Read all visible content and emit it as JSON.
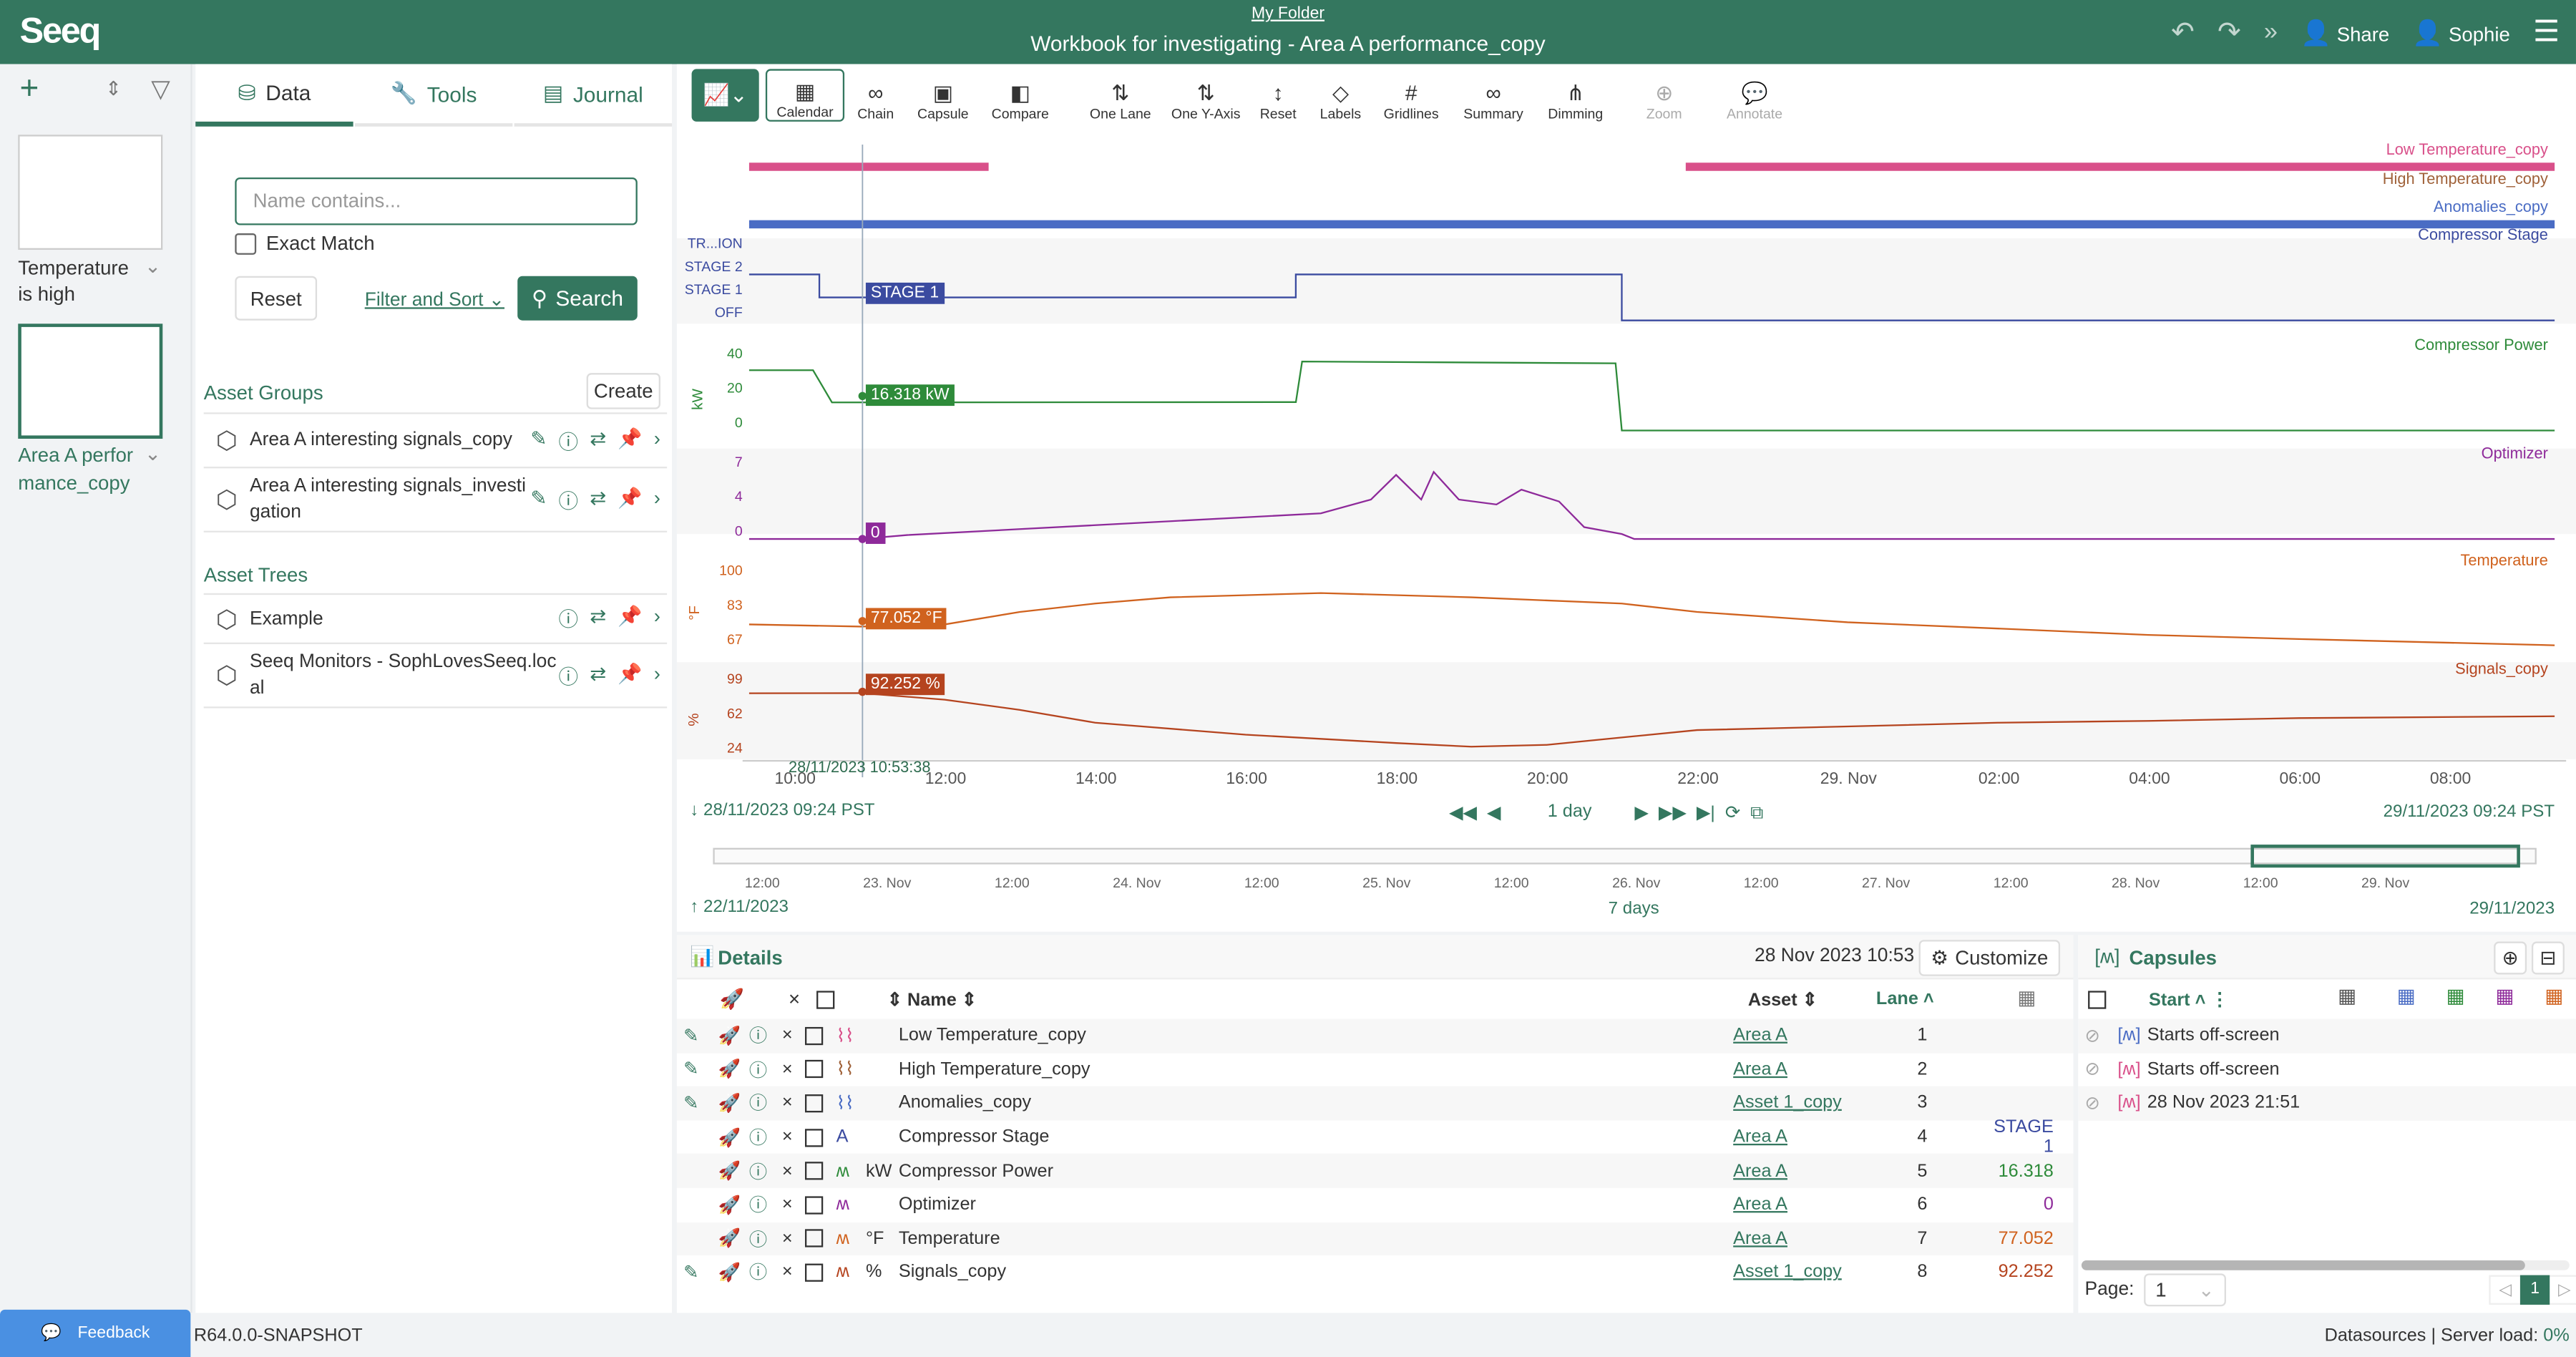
{
  "header": {
    "logo": "Seeq",
    "folder": "My Folder",
    "title": "Workbook for investigating - Area A performance_copy",
    "share": "Share",
    "user": "Sophie"
  },
  "worksheets": [
    {
      "name": "Temperature is high"
    },
    {
      "name": "Area A performance_copy",
      "active": true
    }
  ],
  "panel": {
    "tabs": [
      {
        "label": "Data",
        "icon": "database-icon",
        "active": true
      },
      {
        "label": "Tools",
        "icon": "wrench-icon"
      },
      {
        "label": "Journal",
        "icon": "journal-icon"
      }
    ],
    "search_placeholder": "Name contains...",
    "exact_match": "Exact Match",
    "reset": "Reset",
    "filter_sort": "Filter and Sort",
    "search": "Search",
    "asset_groups_title": "Asset Groups",
    "create": "Create",
    "asset_groups": [
      "Area A interesting signals_copy",
      "Area A interesting signals_investigation"
    ],
    "asset_trees_title": "Asset Trees",
    "asset_trees": [
      "Example",
      "Seeq Monitors - SophLovesSeeq.local"
    ]
  },
  "toolbar": {
    "items": [
      "Calendar",
      "Chain",
      "Capsule",
      "Compare",
      "One Lane",
      "One Y-Axis",
      "Reset",
      "Labels",
      "Gridlines",
      "Summary",
      "Dimming",
      "Zoom",
      "Annotate"
    ]
  },
  "trend": {
    "lanes": {
      "low_temp": "Low Temperature_copy",
      "high_temp": "High Temperature_copy",
      "anomalies": "Anomalies_copy",
      "stage": "Compressor Stage",
      "power": "Compressor Power",
      "optimizer": "Optimizer",
      "temperature": "Temperature",
      "signals": "Signals_copy"
    },
    "stage_levels": [
      "TR...ION",
      "STAGE 2",
      "STAGE 1",
      "OFF"
    ],
    "power_ticks": [
      "40",
      "20",
      "0"
    ],
    "power_unit": "kW",
    "opt_ticks": [
      "7",
      "4",
      "0"
    ],
    "temp_ticks": [
      "100",
      "83",
      "67"
    ],
    "temp_unit": "°F",
    "sig_ticks": [
      "99",
      "62",
      "24"
    ],
    "sig_unit": "%",
    "cursor_time": "28/11/2023 10:53:38",
    "cursor_labels": {
      "stage": "STAGE 1",
      "power": "16.318 kW",
      "optimizer": "0",
      "temperature": "77.052 °F",
      "signals": "92.252 %"
    },
    "x_ticks": [
      "10:00",
      "12:00",
      "14:00",
      "16:00",
      "18:00",
      "20:00",
      "22:00",
      "29. Nov",
      "02:00",
      "04:00",
      "06:00",
      "08:00"
    ],
    "start": "28/11/2023 09:24  PST",
    "end": "29/11/2023 09:24  PST",
    "duration": "1 day",
    "overview_ticks": [
      "12:00",
      "23. Nov",
      "12:00",
      "24. Nov",
      "12:00",
      "25. Nov",
      "12:00",
      "26. Nov",
      "12:00",
      "27. Nov",
      "12:00",
      "28. Nov",
      "12:00",
      "29. Nov"
    ],
    "overview_start": "22/11/2023",
    "overview_end": "29/11/2023",
    "overview_duration": "7 days",
    "colors": {
      "low_temp": "#d9508a",
      "high_temp": "#a0623a",
      "anomalies": "#4a6cc4",
      "stage": "#3b4ba0",
      "power": "#2e8b3a",
      "optimizer": "#8e2a9a",
      "temperature": "#d0621e",
      "signals": "#b5441f"
    }
  },
  "chart_data": {
    "type": "line",
    "x_range": [
      "2023-11-28T09:24",
      "2023-11-29T09:24"
    ],
    "series": [
      {
        "name": "Compressor Power",
        "unit": "kW",
        "ylim": [
          0,
          40
        ],
        "points": [
          [
            "2023-11-28T09:24",
            35
          ],
          [
            "2023-11-28T10:15",
            35
          ],
          [
            "2023-11-28T10:30",
            16.3
          ],
          [
            "2023-11-28T16:40",
            16.5
          ],
          [
            "2023-11-28T16:45",
            40
          ],
          [
            "2023-11-28T20:55",
            39
          ],
          [
            "2023-11-28T21:00",
            0
          ],
          [
            "2023-11-29T09:24",
            0
          ]
        ]
      },
      {
        "name": "Optimizer",
        "ylim": [
          0,
          7
        ],
        "points": [
          [
            "2023-11-28T09:24",
            0
          ],
          [
            "2023-11-28T10:53",
            0
          ],
          [
            "2023-11-28T11:30",
            0.4
          ],
          [
            "2023-11-28T13:00",
            1
          ],
          [
            "2023-11-28T14:00",
            1.4
          ],
          [
            "2023-11-28T15:00",
            1.8
          ],
          [
            "2023-11-28T16:00",
            2.2
          ],
          [
            "2023-11-28T17:00",
            2.6
          ],
          [
            "2023-11-28T17:40",
            4
          ],
          [
            "2023-11-28T18:00",
            6.5
          ],
          [
            "2023-11-28T18:20",
            4
          ],
          [
            "2023-11-28T18:30",
            6.8
          ],
          [
            "2023-11-28T18:50",
            4
          ],
          [
            "2023-11-28T19:20",
            3.5
          ],
          [
            "2023-11-28T19:40",
            5
          ],
          [
            "2023-11-28T20:10",
            3.8
          ],
          [
            "2023-11-28T20:30",
            1.2
          ],
          [
            "2023-11-28T21:00",
            0.5
          ],
          [
            "2023-11-28T21:10",
            0
          ],
          [
            "2023-11-29T09:24",
            0
          ]
        ]
      },
      {
        "name": "Temperature",
        "unit": "°F",
        "ylim": [
          67,
          100
        ],
        "points": [
          [
            "2023-11-28T09:24",
            78
          ],
          [
            "2023-11-28T10:53",
            77
          ],
          [
            "2023-11-28T12:00",
            78
          ],
          [
            "2023-11-28T13:00",
            84
          ],
          [
            "2023-11-28T14:00",
            88
          ],
          [
            "2023-11-28T15:00",
            91
          ],
          [
            "2023-11-28T17:00",
            93
          ],
          [
            "2023-11-28T19:00",
            91
          ],
          [
            "2023-11-28T21:00",
            88
          ],
          [
            "2023-11-28T22:00",
            84
          ],
          [
            "2023-11-29T00:00",
            79
          ],
          [
            "2023-11-29T02:00",
            76
          ],
          [
            "2023-11-29T04:00",
            73
          ],
          [
            "2023-11-29T06:00",
            71
          ],
          [
            "2023-11-29T09:24",
            68
          ]
        ]
      },
      {
        "name": "Signals_copy",
        "unit": "%",
        "ylim": [
          24,
          99
        ],
        "points": [
          [
            "2023-11-28T09:24",
            92
          ],
          [
            "2023-11-28T10:53",
            92.3
          ],
          [
            "2023-11-28T12:00",
            85
          ],
          [
            "2023-11-28T13:00",
            74
          ],
          [
            "2023-11-28T14:00",
            60
          ],
          [
            "2023-11-28T16:00",
            47
          ],
          [
            "2023-11-28T18:00",
            38
          ],
          [
            "2023-11-28T19:00",
            34
          ],
          [
            "2023-11-28T20:00",
            36
          ],
          [
            "2023-11-28T21:00",
            44
          ],
          [
            "2023-11-28T22:00",
            52
          ],
          [
            "2023-11-29T00:00",
            56
          ],
          [
            "2023-11-29T02:00",
            60
          ],
          [
            "2023-11-29T04:00",
            62
          ],
          [
            "2023-11-29T06:00",
            65
          ],
          [
            "2023-11-29T09:24",
            67
          ]
        ]
      },
      {
        "name": "Compressor Stage",
        "levels": [
          "OFF",
          "STAGE 1",
          "STAGE 2",
          "TR...ION"
        ],
        "points": [
          [
            "2023-11-28T09:24",
            "STAGE 2"
          ],
          [
            "2023-11-28T10:20",
            "STAGE 1"
          ],
          [
            "2023-11-28T16:40",
            "STAGE 2"
          ],
          [
            "2023-11-28T21:00",
            "OFF"
          ],
          [
            "2023-11-29T09:24",
            "OFF"
          ]
        ]
      }
    ],
    "capsules": [
      {
        "name": "Low Temperature_copy",
        "ranges": [
          [
            "2023-11-28T09:24",
            "2023-11-28T12:35"
          ],
          [
            "2023-11-28T21:51",
            "2023-11-29T09:24"
          ]
        ]
      },
      {
        "name": "Anomalies_copy",
        "ranges": [
          [
            "2023-11-28T09:24",
            "2023-11-29T09:24"
          ]
        ]
      }
    ]
  },
  "details": {
    "title": "Details",
    "timestamp": "28 Nov 2023 10:53",
    "customize": "Customize",
    "cols": {
      "name": "Name",
      "asset": "Asset",
      "lane": "Lane"
    },
    "rows": [
      {
        "name": "Low Temperature_copy",
        "unit": "",
        "asset": "Area A",
        "lane": "1",
        "value": "",
        "color": "#d9508a",
        "kind": "capsule",
        "edit": true
      },
      {
        "name": "High Temperature_copy",
        "unit": "",
        "asset": "Area A",
        "lane": "2",
        "value": "",
        "color": "#a0623a",
        "kind": "capsule",
        "edit": true
      },
      {
        "name": "Anomalies_copy",
        "unit": "",
        "asset": "Asset 1_copy",
        "lane": "3",
        "value": "",
        "color": "#4a6cc4",
        "kind": "capsule",
        "edit": true
      },
      {
        "name": "Compressor Stage",
        "unit": "",
        "asset": "Area A",
        "lane": "4",
        "value": "STAGE 1",
        "color": "#3b4ba0",
        "kind": "string",
        "edit": false
      },
      {
        "name": "Compressor Power",
        "unit": "kW",
        "asset": "Area A",
        "lane": "5",
        "value": "16.318",
        "color": "#2e8b3a",
        "kind": "signal",
        "edit": false
      },
      {
        "name": "Optimizer",
        "unit": "",
        "asset": "Area A",
        "lane": "6",
        "value": "0",
        "color": "#8e2a9a",
        "kind": "signal",
        "edit": false
      },
      {
        "name": "Temperature",
        "unit": "°F",
        "asset": "Area A",
        "lane": "7",
        "value": "77.052",
        "color": "#d0621e",
        "kind": "signal",
        "edit": false
      },
      {
        "name": "Signals_copy",
        "unit": "%",
        "asset": "Asset 1_copy",
        "lane": "8",
        "value": "92.252",
        "color": "#b5441f",
        "kind": "signal",
        "edit": true
      }
    ]
  },
  "capsules": {
    "title": "Capsules",
    "start_col": "Start",
    "rows": [
      {
        "start": "Starts off-screen",
        "color": "#4a6cc4"
      },
      {
        "start": "Starts off-screen",
        "color": "#d9508a"
      },
      {
        "start": "28 Nov 2023 21:51",
        "color": "#d9508a"
      }
    ],
    "page_label": "Page:",
    "page": "1"
  },
  "status": {
    "feedback": "Feedback",
    "version": "R64.0.0-SNAPSHOT",
    "datasources": "Datasources",
    "server_load_label": "Server load:",
    "server_load": "0%"
  }
}
